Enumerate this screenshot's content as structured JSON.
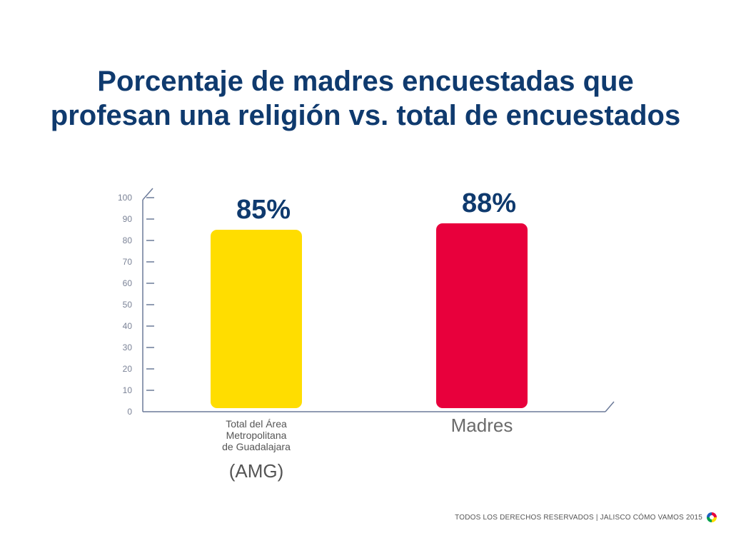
{
  "title": {
    "line1": "Porcentaje de  madres encuestadas que",
    "line2": "profesan una religión vs. total de encuestados"
  },
  "chart_data": {
    "type": "bar",
    "categories": [
      "Total del Área Metropolitana de Guadalajara (AMG)",
      "Madres"
    ],
    "category_label_lines": [
      [
        "Total del Área",
        "Metropolitana",
        "de Guadalajara",
        "(AMG)"
      ],
      [
        "Madres"
      ]
    ],
    "values": [
      85,
      88
    ],
    "data_labels": [
      "85%",
      "88%"
    ],
    "ylim": [
      0,
      100
    ],
    "yticks": [
      0,
      10,
      20,
      30,
      40,
      50,
      60,
      70,
      80,
      90,
      100
    ],
    "colors": [
      "#ffdd00",
      "#e8003c"
    ],
    "grid": false
  },
  "footer": {
    "text": "TODOS LOS DERECHOS RESERVADOS  |  JALISCO CÓMO VAMOS 2015"
  }
}
